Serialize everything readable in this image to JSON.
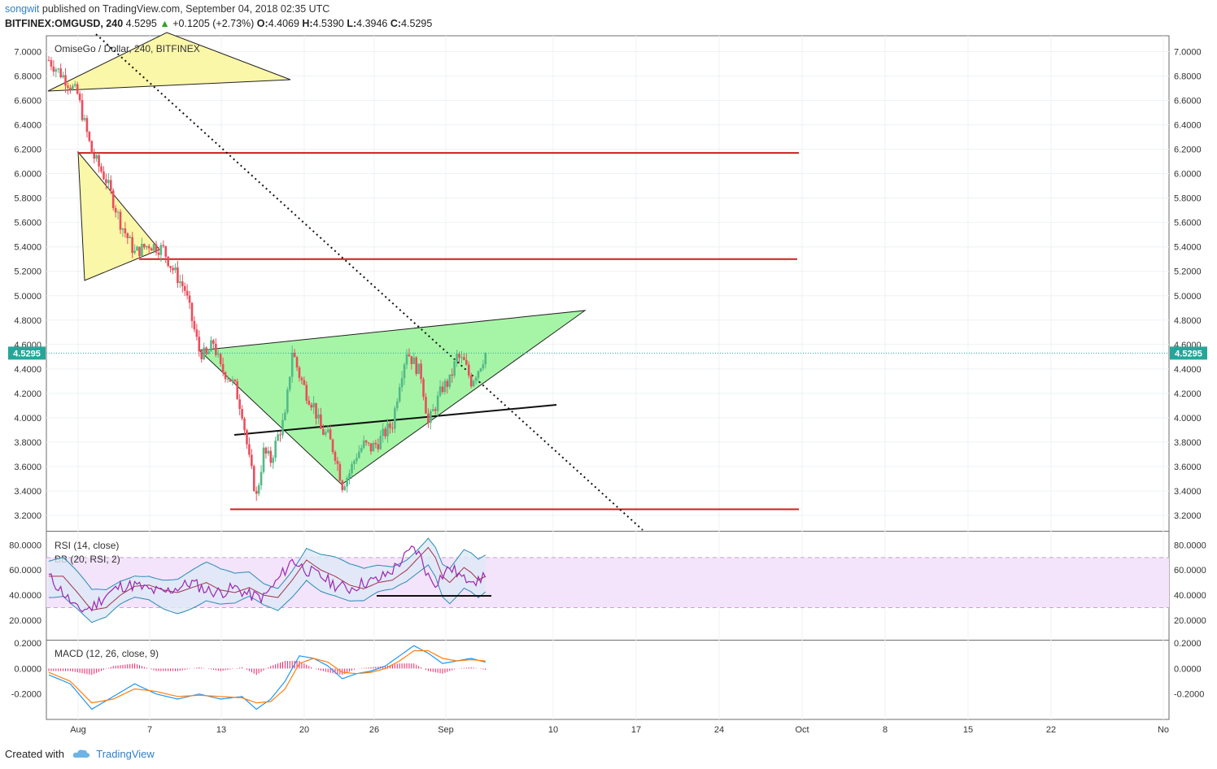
{
  "header": {
    "author": "songwit",
    "published_text": "published on TradingView.com, September 04, 2018 02:35 UTC",
    "symbol": "BITFINEX:OMGUSD, 240",
    "last": "4.5295",
    "change": "+0.1205 (+2.73%)",
    "o_label": "O:",
    "o_value": "4.4069",
    "h_label": "H:",
    "h_value": "4.5390",
    "l_label": "L:",
    "l_value": "4.3946",
    "c_label": "C:",
    "c_value": "4.5295"
  },
  "chart_data": {
    "type": "candlestick",
    "title": "OmiseGo / Dollar, 240, BITFINEX",
    "price_axis": {
      "ticks": [
        "7.0000",
        "6.8000",
        "6.6000",
        "6.4000",
        "6.2000",
        "6.0000",
        "5.8000",
        "5.6000",
        "5.4000",
        "5.2000",
        "5.0000",
        "4.8000",
        "4.6000",
        "4.4000",
        "4.2000",
        "4.0000",
        "3.8000",
        "3.6000",
        "3.4000",
        "3.2000"
      ],
      "range": [
        3.08,
        7.13
      ]
    },
    "last_price_label": "4.5295",
    "x_axis_labels": [
      "Aug",
      "7",
      "13",
      "20",
      "26",
      "Sep",
      "10",
      "17",
      "24",
      "Oct",
      "8",
      "15",
      "22",
      "No"
    ],
    "price_path": [
      [
        0,
        6.93
      ],
      [
        2,
        6.8
      ],
      [
        4,
        6.65
      ],
      [
        6,
        6.17
      ],
      [
        8,
        5.95
      ],
      [
        10,
        5.6
      ],
      [
        12,
        5.35
      ],
      [
        14,
        5.42
      ],
      [
        16,
        5.38
      ],
      [
        17,
        5.25
      ],
      [
        19,
        5.05
      ],
      [
        20,
        4.8
      ],
      [
        21,
        4.55
      ],
      [
        22,
        4.5
      ],
      [
        23,
        4.62
      ],
      [
        24,
        4.4
      ],
      [
        25,
        4.35
      ],
      [
        26,
        4.25
      ],
      [
        27,
        4.05
      ],
      [
        28,
        3.65
      ],
      [
        29,
        3.35
      ],
      [
        30,
        3.72
      ],
      [
        31,
        3.65
      ],
      [
        32,
        3.85
      ],
      [
        33,
        4.0
      ],
      [
        34,
        4.55
      ],
      [
        35,
        4.35
      ],
      [
        36,
        4.2
      ],
      [
        37,
        4.1
      ],
      [
        38,
        3.9
      ],
      [
        39,
        3.85
      ],
      [
        40,
        3.7
      ],
      [
        41,
        3.45
      ],
      [
        42,
        3.55
      ],
      [
        43,
        3.7
      ],
      [
        44,
        3.78
      ],
      [
        45,
        3.75
      ],
      [
        46,
        3.8
      ],
      [
        47,
        3.88
      ],
      [
        48,
        3.95
      ],
      [
        49,
        4.3
      ],
      [
        50,
        4.55
      ],
      [
        51,
        4.45
      ],
      [
        52,
        4.35
      ],
      [
        53,
        3.95
      ],
      [
        54,
        4.1
      ],
      [
        55,
        4.25
      ],
      [
        56,
        4.3
      ],
      [
        57,
        4.5
      ],
      [
        58,
        4.45
      ],
      [
        59,
        4.3
      ],
      [
        60,
        4.4
      ],
      [
        61,
        4.53
      ]
    ],
    "support_resistance": [
      6.17,
      5.3,
      3.25
    ],
    "rsi": {
      "title": "RSI (14, close)",
      "bb_title": "BB (20, RSI, 2)",
      "ticks": [
        "80.0000",
        "60.0000",
        "40.0000",
        "20.0000"
      ],
      "range": [
        5,
        90
      ],
      "band_upper": 70,
      "band_lower": 30,
      "values": [
        [
          0,
          55
        ],
        [
          2,
          42
        ],
        [
          4,
          28
        ],
        [
          6,
          30
        ],
        [
          8,
          40
        ],
        [
          10,
          47
        ],
        [
          12,
          48
        ],
        [
          14,
          44
        ],
        [
          16,
          42
        ],
        [
          18,
          46
        ],
        [
          20,
          50
        ],
        [
          22,
          44
        ],
        [
          24,
          42
        ],
        [
          26,
          46
        ],
        [
          28,
          40
        ],
        [
          30,
          38
        ],
        [
          32,
          52
        ],
        [
          34,
          68
        ],
        [
          36,
          60
        ],
        [
          38,
          55
        ],
        [
          40,
          48
        ],
        [
          42,
          45
        ],
        [
          44,
          50
        ],
        [
          46,
          52
        ],
        [
          48,
          60
        ],
        [
          50,
          72
        ],
        [
          51,
          78
        ],
        [
          52,
          70
        ],
        [
          53,
          55
        ],
        [
          54,
          50
        ],
        [
          55,
          56
        ],
        [
          56,
          62
        ],
        [
          57,
          58
        ],
        [
          58,
          52
        ],
        [
          59,
          55
        ],
        [
          60,
          50
        ],
        [
          61,
          58
        ]
      ]
    },
    "macd": {
      "title": "MACD (12, 26, close, 9)",
      "ticks": [
        "0.2000",
        "0.0000",
        "-0.2000"
      ],
      "range": [
        -0.4,
        0.22
      ],
      "macd_line": [
        [
          0,
          -0.05
        ],
        [
          3,
          -0.12
        ],
        [
          6,
          -0.32
        ],
        [
          9,
          -0.22
        ],
        [
          12,
          -0.12
        ],
        [
          15,
          -0.2
        ],
        [
          18,
          -0.24
        ],
        [
          21,
          -0.2
        ],
        [
          24,
          -0.24
        ],
        [
          27,
          -0.22
        ],
        [
          29,
          -0.32
        ],
        [
          31,
          -0.24
        ],
        [
          33,
          -0.1
        ],
        [
          35,
          0.1
        ],
        [
          37,
          0.08
        ],
        [
          39,
          0.02
        ],
        [
          41,
          -0.08
        ],
        [
          43,
          -0.04
        ],
        [
          45,
          -0.02
        ],
        [
          47,
          0.02
        ],
        [
          49,
          0.1
        ],
        [
          51,
          0.18
        ],
        [
          53,
          0.12
        ],
        [
          55,
          0.04
        ],
        [
          57,
          0.06
        ],
        [
          59,
          0.08
        ],
        [
          61,
          0.05
        ]
      ],
      "signal_line": [
        [
          0,
          -0.03
        ],
        [
          3,
          -0.1
        ],
        [
          6,
          -0.27
        ],
        [
          9,
          -0.24
        ],
        [
          12,
          -0.16
        ],
        [
          15,
          -0.18
        ],
        [
          18,
          -0.22
        ],
        [
          21,
          -0.21
        ],
        [
          24,
          -0.22
        ],
        [
          27,
          -0.23
        ],
        [
          29,
          -0.27
        ],
        [
          31,
          -0.26
        ],
        [
          33,
          -0.16
        ],
        [
          35,
          0.04
        ],
        [
          37,
          0.08
        ],
        [
          39,
          0.05
        ],
        [
          41,
          -0.03
        ],
        [
          43,
          -0.04
        ],
        [
          45,
          -0.03
        ],
        [
          47,
          0.0
        ],
        [
          49,
          0.06
        ],
        [
          51,
          0.14
        ],
        [
          53,
          0.14
        ],
        [
          55,
          0.08
        ],
        [
          57,
          0.06
        ],
        [
          59,
          0.07
        ],
        [
          61,
          0.06
        ]
      ]
    }
  },
  "colors": {
    "up": "#53b987",
    "down": "#eb4d5c",
    "sr_line": "#cc1f1f",
    "rsi_line": "#9c27b0",
    "rsi_band": "#f3e3fb",
    "bb_fill": "#dde9f6",
    "bb_line": "#2a8bb5",
    "macd": "#2196f3",
    "signal": "#ff7f0e",
    "hist": "#e91e63",
    "yellow_tri": "#fbf7a8",
    "green_tri": "#a6f5a6",
    "last_label": "#26a69a"
  },
  "footer": {
    "created_with": "Created with",
    "brand": "TradingView"
  }
}
